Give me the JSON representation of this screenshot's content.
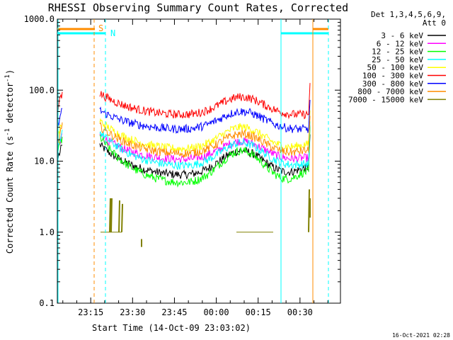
{
  "chart_data": {
    "type": "line",
    "title": "RHESSI Observing Summary Count Rates, Corrected",
    "xlabel": "Start Time (14-Oct-09 23:03:02)",
    "ylabel_main": "Corrected Count Rate (s",
    "ylabel_sup1": "-1",
    "ylabel_mid": " detector",
    "ylabel_sup2": "-1",
    "ylabel_end": ")",
    "y_scale": "log",
    "ylim": [
      0.1,
      1000
    ],
    "xlim": [
      "23:03:02",
      "00:44:30"
    ],
    "x_ticks": [
      "23:15",
      "23:30",
      "23:45",
      "00:00",
      "00:15",
      "00:30"
    ],
    "y_ticks": [
      "0.1",
      "1.0",
      "10.0",
      "100.0",
      "1000.0"
    ],
    "legend_header": [
      "Det 1,3,4,5,6,9,",
      "Att 0"
    ],
    "timestamp": "16-Oct-2021 02:28",
    "series": [
      {
        "name": "3 - 6 keV",
        "color": "#000000",
        "level_start": 17,
        "level_mid": 6,
        "level_end": 8,
        "level_peak": 14
      },
      {
        "name": "6 - 12 keV",
        "color": "#ff00ff",
        "level_start": 23,
        "level_mid": 10,
        "level_end": 11,
        "level_peak": 19
      },
      {
        "name": "12 - 25 keV",
        "color": "#00ff00",
        "level_start": 22,
        "level_mid": 4.5,
        "level_end": 7,
        "level_peak": 14
      },
      {
        "name": "25 - 50 keV",
        "color": "#00ffff",
        "level_start": 26,
        "level_mid": 8,
        "level_end": 9,
        "level_peak": 18
      },
      {
        "name": "50 - 100 keV",
        "color": "#ffff00",
        "level_start": 37,
        "level_mid": 14,
        "level_end": 17,
        "level_peak": 30
      },
      {
        "name": "100 - 300 keV",
        "color": "#ff0000",
        "level_start": 90,
        "level_mid": 43,
        "level_end": 45,
        "level_peak": 80
      },
      {
        "name": "300 - 800 keV",
        "color": "#0000ff",
        "level_start": 52,
        "level_mid": 27,
        "level_end": 28,
        "level_peak": 50
      },
      {
        "name": "800 - 7000 keV",
        "color": "#ff8c00",
        "level_start": 31,
        "level_mid": 12,
        "level_end": 14,
        "level_peak": 24
      },
      {
        "name": "7000 - 15000 keV",
        "color": "#808000",
        "level_start": 1.0,
        "level_mid": 1.0,
        "level_end": 1.0,
        "level_peak": 1.0
      }
    ],
    "flags": [
      {
        "label": "S",
        "color": "#ff8c00"
      },
      {
        "label": "N",
        "color": "#00ffff"
      }
    ]
  }
}
